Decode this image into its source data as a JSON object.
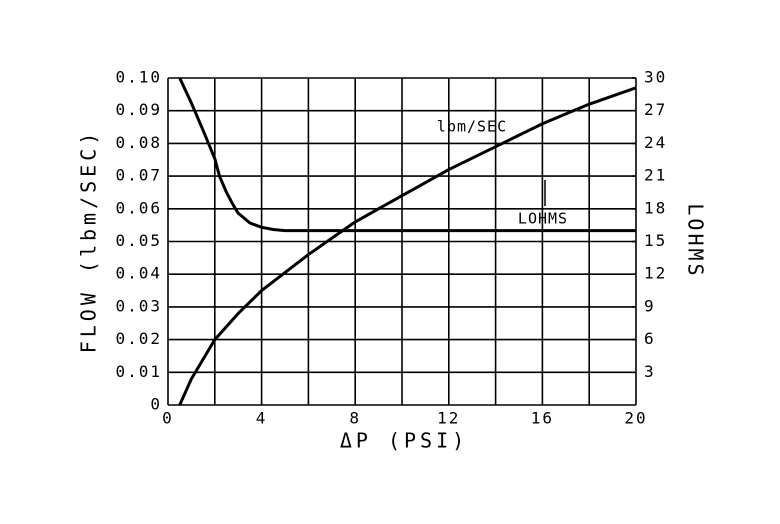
{
  "chart_data": {
    "type": "line",
    "xlabel": "ΔP (PSI)",
    "ylabel": "FLOW (lbm/SEC)",
    "y2label": "LOHMS",
    "xlim": [
      0,
      20
    ],
    "xticks": [
      0,
      4,
      8,
      12,
      16,
      20
    ],
    "xgrid": [
      0,
      2,
      4,
      6,
      8,
      10,
      12,
      14,
      16,
      18,
      20
    ],
    "ylim": [
      0,
      0.1
    ],
    "yticks": [
      0,
      0.01,
      0.02,
      0.03,
      0.04,
      0.05,
      0.06,
      0.07,
      0.08,
      0.09,
      {
        "value": 0.1,
        "label": "0.10"
      }
    ],
    "y2lim": [
      0,
      30
    ],
    "y2ticks": [
      3,
      6,
      9,
      12,
      15,
      18,
      21,
      24,
      27,
      30
    ],
    "grid": true,
    "series": [
      {
        "name": "lbm/SEC",
        "color": "#000000",
        "x": [
          0.5,
          1,
          2,
          3,
          4,
          6,
          8,
          10,
          12,
          14,
          16,
          18,
          20
        ],
        "values": [
          0,
          0.008,
          0.02,
          0.028,
          0.035,
          0.046,
          0.056,
          0.064,
          0.072,
          0.079,
          0.086,
          0.092,
          0.097
        ]
      },
      {
        "name": "LOHMS",
        "color": "#000000",
        "axis": "y2",
        "x": [
          0.5,
          1,
          1.5,
          2,
          2.2,
          2.5,
          2.8,
          3,
          3.5,
          4,
          4.5,
          5,
          20
        ],
        "values": [
          30,
          27.7,
          25.2,
          22.6,
          21,
          19.5,
          18.3,
          17.6,
          16.7,
          16.3,
          16.1,
          16,
          16
        ]
      }
    ]
  }
}
